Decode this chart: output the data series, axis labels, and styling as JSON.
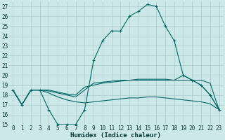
{
  "xlabel": "Humidex (Indice chaleur)",
  "bg_color": "#cce8e8",
  "grid_color": "#aacccc",
  "line_color": "#006666",
  "xlim": [
    -0.5,
    23.5
  ],
  "ylim": [
    15,
    27.5
  ],
  "yticks": [
    15,
    16,
    17,
    18,
    19,
    20,
    21,
    22,
    23,
    24,
    25,
    26,
    27
  ],
  "xticks": [
    0,
    1,
    2,
    3,
    4,
    5,
    6,
    7,
    8,
    9,
    10,
    11,
    12,
    13,
    14,
    15,
    16,
    17,
    18,
    19,
    20,
    21,
    22,
    23
  ],
  "curve1_x": [
    0,
    1,
    2,
    3,
    4,
    5,
    6,
    7,
    8,
    9,
    10,
    11,
    12,
    13,
    14,
    15,
    16,
    17,
    18,
    19,
    20,
    21,
    22,
    23
  ],
  "curve1_y": [
    18.5,
    17.0,
    18.5,
    18.5,
    16.5,
    15.0,
    15.0,
    15.0,
    16.5,
    21.5,
    23.5,
    24.5,
    24.5,
    26.0,
    26.5,
    27.2,
    27.0,
    25.0,
    23.5,
    20.0,
    19.5,
    19.0,
    18.0,
    16.5
  ],
  "curve2_x": [
    0,
    1,
    2,
    3,
    4,
    5,
    6,
    7,
    8,
    9,
    10,
    11,
    12,
    13,
    14,
    15,
    16,
    17,
    18,
    19,
    20,
    21,
    22,
    23
  ],
  "curve2_y": [
    18.5,
    17.0,
    18.5,
    18.5,
    18.5,
    18.3,
    18.1,
    18.0,
    18.8,
    19.0,
    19.2,
    19.3,
    19.4,
    19.5,
    19.5,
    19.5,
    19.5,
    19.5,
    19.5,
    19.5,
    19.5,
    19.5,
    19.2,
    16.5
  ],
  "curve3_x": [
    0,
    1,
    2,
    3,
    4,
    5,
    6,
    7,
    8,
    9,
    10,
    11,
    12,
    13,
    14,
    15,
    16,
    17,
    18,
    19,
    20,
    21,
    22,
    23
  ],
  "curve3_y": [
    18.5,
    17.0,
    18.5,
    18.5,
    18.2,
    17.8,
    17.5,
    17.3,
    17.2,
    17.3,
    17.4,
    17.5,
    17.6,
    17.7,
    17.7,
    17.8,
    17.8,
    17.7,
    17.6,
    17.5,
    17.4,
    17.3,
    17.1,
    16.5
  ],
  "curve4_x": [
    0,
    1,
    2,
    3,
    4,
    5,
    6,
    7,
    8,
    9,
    10,
    11,
    12,
    13,
    14,
    15,
    16,
    17,
    18,
    19,
    20,
    21,
    22,
    23
  ],
  "curve4_y": [
    18.5,
    17.0,
    18.5,
    18.5,
    18.4,
    18.2,
    18.0,
    17.8,
    18.5,
    19.2,
    19.3,
    19.4,
    19.5,
    19.5,
    19.6,
    19.6,
    19.6,
    19.6,
    19.5,
    20.0,
    19.5,
    19.0,
    18.0,
    16.5
  ]
}
